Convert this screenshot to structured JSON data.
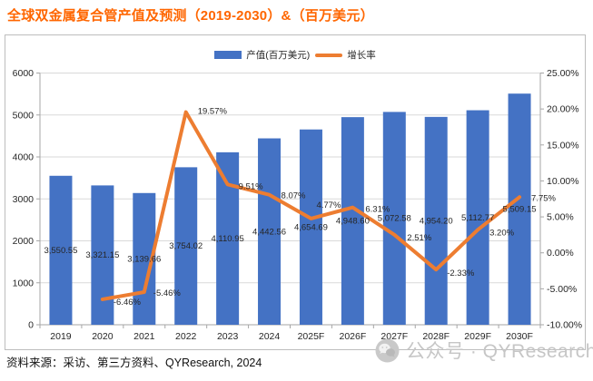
{
  "title": "全球双金属复合管产值及预测（2019-2030）&（百万美元）",
  "legend": {
    "bar_label": "产值(百万美元)",
    "line_label": "增长率"
  },
  "chart_data": {
    "type": "bar+line",
    "title": "全球双金属复合管产值及预测（2019-2030）&（百万美元）",
    "categories": [
      "2019",
      "2020",
      "2021",
      "2022",
      "2023",
      "2024",
      "2025F",
      "2026F",
      "2027F",
      "2028F",
      "2029F",
      "2030F"
    ],
    "series": [
      {
        "name": "产值(百万美元)",
        "type": "bar",
        "color": "#4472C4",
        "values": [
          3550.55,
          3321.15,
          3139.66,
          3754.02,
          4110.95,
          4442.56,
          4654.69,
          4948.6,
          5072.58,
          4954.2,
          5112.77,
          5509.15
        ],
        "labels": [
          "3,550.55",
          "3,321.15",
          "3,139.66",
          "3,754.02",
          "4,110.95",
          "4,442.56",
          "4,654.69",
          "4,948.60",
          "5,072.58",
          "4,954.20",
          "5,112.77",
          "5,509.15"
        ]
      },
      {
        "name": "增长率",
        "type": "line",
        "color": "#ED7D31",
        "values": [
          null,
          -6.46,
          -5.46,
          19.57,
          9.51,
          8.07,
          4.77,
          6.31,
          2.51,
          -2.33,
          3.2,
          7.75
        ],
        "labels": [
          null,
          "-6.46%",
          "-5.46%",
          "19.57%",
          "9.51%",
          "8.07%",
          "4.77%",
          "6.31%",
          "2.51%",
          "-2.33%",
          "3.20%",
          "7.75%"
        ]
      }
    ],
    "left_axis": {
      "min": 0,
      "max": 6000,
      "step": 1000,
      "ticks": [
        "0",
        "1000",
        "2000",
        "3000",
        "4000",
        "5000",
        "6000"
      ]
    },
    "right_axis": {
      "min": -10,
      "max": 25,
      "step": 5,
      "ticks": [
        "-10.00%",
        "-5.00%",
        "0.00%",
        "5.00%",
        "10.00%",
        "15.00%",
        "20.00%",
        "25.00%"
      ]
    },
    "grid": "horizontal gridlines at primary (left) axis steps",
    "legend_position": "top-center"
  },
  "colors": {
    "bar": "#4472C4",
    "line": "#ED7D31",
    "title": "#FF6600",
    "grid": "#D9D9D9",
    "axis": "#A6A6A6",
    "tick_text": "#262626",
    "data_label": "#262626",
    "watermark": "#C6C6C6"
  },
  "footer": {
    "source": "资料来源：采访、第三方资料、QYResearch, 2024"
  },
  "watermark": {
    "icon": "wechat-icon",
    "text": "公众号 · QYResearch"
  }
}
